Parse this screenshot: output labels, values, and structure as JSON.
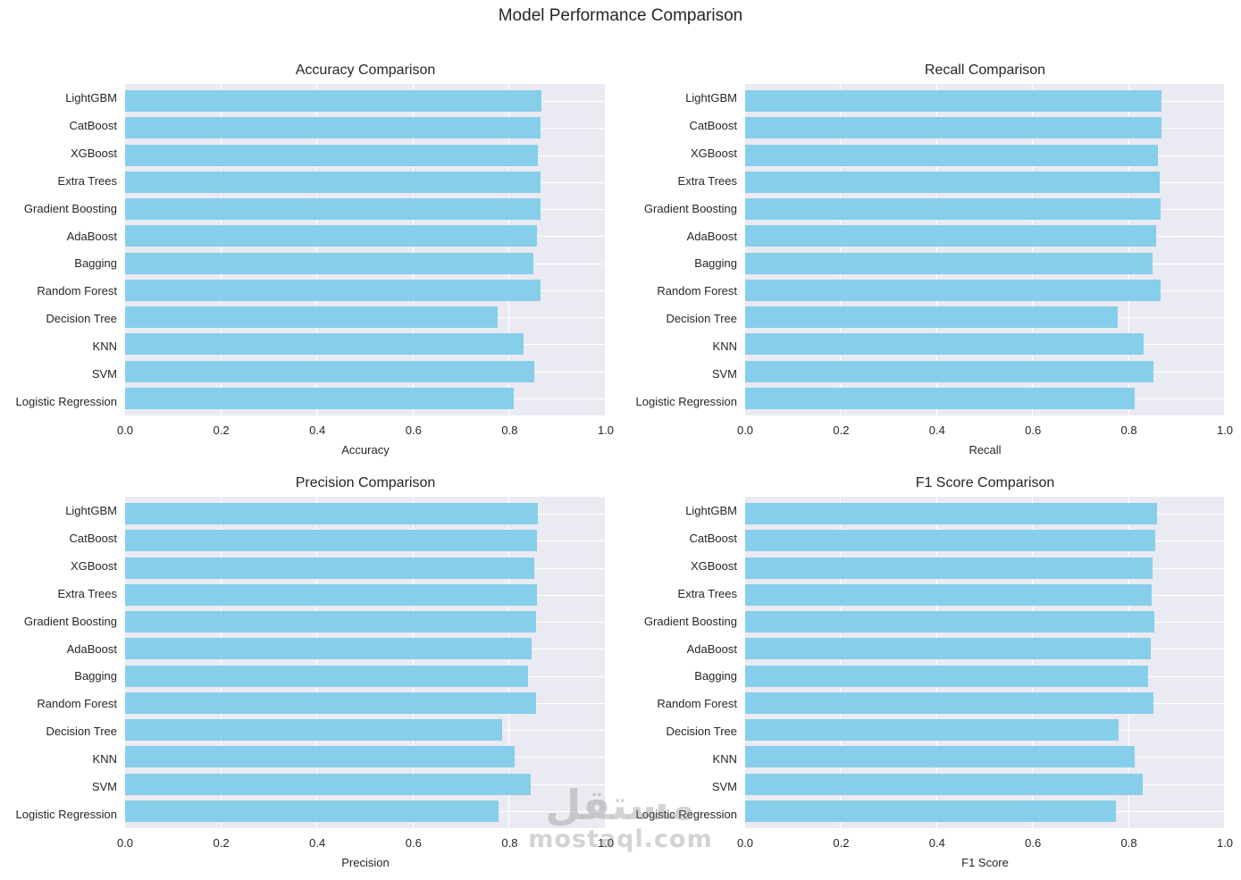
{
  "figure": {
    "title": "Model Performance Comparison"
  },
  "watermark": {
    "logo_text": "مستقل",
    "site_text": "mostaql.com"
  },
  "colors": {
    "bar_fill": "#87ceeb",
    "plot_background": "#eaeaf2",
    "gridline": "#ffffff",
    "text": "#262626",
    "watermark": "rgba(130,130,130,0.35)"
  },
  "chart_data": [
    {
      "type": "bar",
      "orientation": "horizontal",
      "title": "Accuracy Comparison",
      "xlabel": "Accuracy",
      "xlim": [
        0.0,
        1.0
      ],
      "x_ticks": [
        "0.0",
        "0.2",
        "0.4",
        "0.6",
        "0.8",
        "1.0"
      ],
      "grid": true,
      "legend": null,
      "categories": [
        "LightGBM",
        "CatBoost",
        "XGBoost",
        "Extra Trees",
        "Gradient Boosting",
        "AdaBoost",
        "Bagging",
        "Random Forest",
        "Decision Tree",
        "KNN",
        "SVM",
        "Logistic Regression"
      ],
      "values": [
        0.866,
        0.865,
        0.859,
        0.865,
        0.864,
        0.856,
        0.849,
        0.864,
        0.776,
        0.829,
        0.851,
        0.809
      ]
    },
    {
      "type": "bar",
      "orientation": "horizontal",
      "title": "Recall Comparison",
      "xlabel": "Recall",
      "xlim": [
        0.0,
        1.0
      ],
      "x_ticks": [
        "0.0",
        "0.2",
        "0.4",
        "0.6",
        "0.8",
        "1.0"
      ],
      "grid": true,
      "legend": null,
      "categories": [
        "LightGBM",
        "CatBoost",
        "XGBoost",
        "Extra Trees",
        "Gradient Boosting",
        "AdaBoost",
        "Bagging",
        "Random Forest",
        "Decision Tree",
        "KNN",
        "SVM",
        "Logistic Regression"
      ],
      "values": [
        0.867,
        0.867,
        0.861,
        0.864,
        0.865,
        0.857,
        0.85,
        0.865,
        0.776,
        0.831,
        0.851,
        0.811
      ]
    },
    {
      "type": "bar",
      "orientation": "horizontal",
      "title": "Precision Comparison",
      "xlabel": "Precision",
      "xlim": [
        0.0,
        1.0
      ],
      "x_ticks": [
        "0.0",
        "0.2",
        "0.4",
        "0.6",
        "0.8",
        "1.0"
      ],
      "grid": true,
      "legend": null,
      "categories": [
        "LightGBM",
        "CatBoost",
        "XGBoost",
        "Extra Trees",
        "Gradient Boosting",
        "AdaBoost",
        "Bagging",
        "Random Forest",
        "Decision Tree",
        "KNN",
        "SVM",
        "Logistic Regression"
      ],
      "values": [
        0.858,
        0.856,
        0.851,
        0.857,
        0.855,
        0.846,
        0.838,
        0.855,
        0.785,
        0.811,
        0.843,
        0.777
      ]
    },
    {
      "type": "bar",
      "orientation": "horizontal",
      "title": "F1 Score Comparison",
      "xlabel": "F1 Score",
      "xlim": [
        0.0,
        1.0
      ],
      "x_ticks": [
        "0.0",
        "0.2",
        "0.4",
        "0.6",
        "0.8",
        "1.0"
      ],
      "grid": true,
      "legend": null,
      "categories": [
        "LightGBM",
        "CatBoost",
        "XGBoost",
        "Extra Trees",
        "Gradient Boosting",
        "AdaBoost",
        "Bagging",
        "Random Forest",
        "Decision Tree",
        "KNN",
        "SVM",
        "Logistic Regression"
      ],
      "values": [
        0.858,
        0.854,
        0.85,
        0.848,
        0.852,
        0.845,
        0.839,
        0.851,
        0.779,
        0.811,
        0.828,
        0.772
      ]
    }
  ]
}
